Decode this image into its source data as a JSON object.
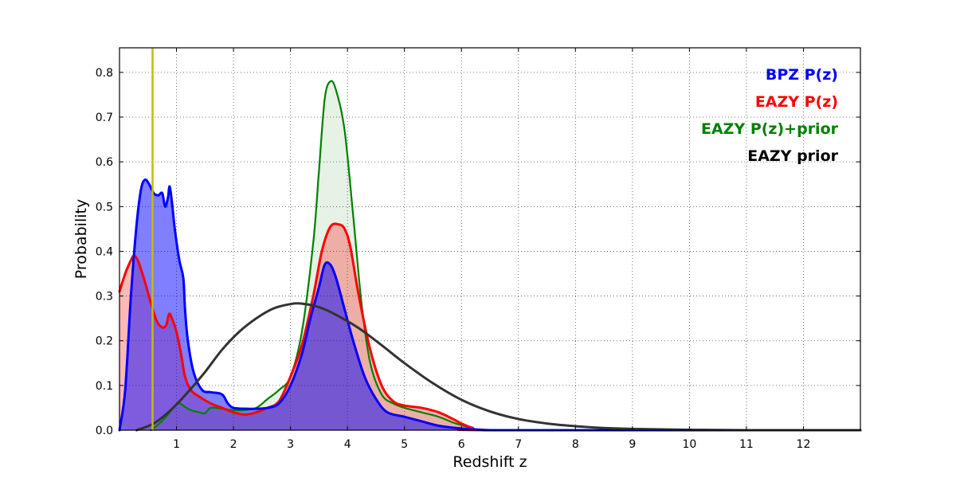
{
  "chart_data": {
    "type": "area",
    "xlabel": "Redshift z",
    "ylabel": "Probability",
    "xlim": [
      0,
      13
    ],
    "ylim": [
      0,
      0.855
    ],
    "grid": true,
    "legend_placement": "top-right",
    "x_ticks": [
      1,
      2,
      3,
      4,
      5,
      6,
      7,
      8,
      9,
      10,
      11,
      12
    ],
    "x_tick_labels": [
      "1",
      "2",
      "3",
      "4",
      "5",
      "6",
      "7",
      "8",
      "9",
      "10",
      "11",
      "12"
    ],
    "y_ticks": [
      0.0,
      0.1,
      0.2,
      0.3,
      0.4,
      0.5,
      0.6,
      0.7,
      0.8
    ],
    "y_tick_labels": [
      "0.0",
      "0.1",
      "0.2",
      "0.3",
      "0.4",
      "0.5",
      "0.6",
      "0.7",
      "0.8"
    ],
    "reference_line": {
      "x": 0.58,
      "color": "#bfbf00"
    },
    "series": [
      {
        "name": "BPZ P(z)",
        "color": "#0000ff",
        "fill": "#0000ff",
        "fill_opacity": 0.5,
        "line_width": 3,
        "x": [
          0,
          0.1,
          0.2,
          0.3,
          0.38,
          0.45,
          0.52,
          0.6,
          0.68,
          0.75,
          0.8,
          0.85,
          0.88,
          0.92,
          0.97,
          1.05,
          1.12,
          1.15,
          1.2,
          1.3,
          1.45,
          1.6,
          1.8,
          1.9,
          2.0,
          2.2,
          2.4,
          2.6,
          2.8,
          3.0,
          3.2,
          3.35,
          3.5,
          3.6,
          3.7,
          3.8,
          3.95,
          4.1,
          4.3,
          4.5,
          4.7,
          5.0,
          5.3,
          5.6,
          5.9,
          6.2,
          6.5,
          7.0,
          13.0
        ],
        "y": [
          0.0,
          0.09,
          0.3,
          0.46,
          0.54,
          0.56,
          0.55,
          0.53,
          0.525,
          0.53,
          0.5,
          0.52,
          0.545,
          0.51,
          0.45,
          0.38,
          0.34,
          0.27,
          0.2,
          0.13,
          0.09,
          0.085,
          0.08,
          0.06,
          0.05,
          0.048,
          0.048,
          0.05,
          0.06,
          0.1,
          0.17,
          0.25,
          0.32,
          0.37,
          0.37,
          0.34,
          0.27,
          0.2,
          0.12,
          0.07,
          0.04,
          0.03,
          0.02,
          0.01,
          0.005,
          0.002,
          0.0,
          0.0,
          0.0
        ]
      },
      {
        "name": "EAZY P(z)",
        "color": "#ff0000",
        "fill": "#ff0000",
        "fill_opacity": 0.28,
        "line_width": 3,
        "x": [
          0,
          0.1,
          0.2,
          0.25,
          0.3,
          0.35,
          0.45,
          0.55,
          0.65,
          0.75,
          0.82,
          0.87,
          0.92,
          1.0,
          1.08,
          1.15,
          1.25,
          1.4,
          1.6,
          1.8,
          2.0,
          2.2,
          2.4,
          2.6,
          2.8,
          3.0,
          3.2,
          3.4,
          3.55,
          3.7,
          3.85,
          3.95,
          4.05,
          4.2,
          4.4,
          4.6,
          4.8,
          5.0,
          5.3,
          5.6,
          5.85,
          6.0,
          6.2,
          6.5,
          13.0
        ],
        "y": [
          0.31,
          0.35,
          0.38,
          0.39,
          0.385,
          0.37,
          0.33,
          0.285,
          0.245,
          0.23,
          0.235,
          0.26,
          0.25,
          0.22,
          0.17,
          0.12,
          0.09,
          0.075,
          0.06,
          0.05,
          0.04,
          0.035,
          0.04,
          0.05,
          0.065,
          0.12,
          0.19,
          0.3,
          0.4,
          0.455,
          0.46,
          0.45,
          0.41,
          0.3,
          0.18,
          0.1,
          0.065,
          0.055,
          0.05,
          0.04,
          0.025,
          0.015,
          0.005,
          0.0,
          0.0
        ]
      },
      {
        "name": "EAZY P(z)+prior",
        "color": "#008000",
        "fill": "#008000",
        "fill_opacity": 0.1,
        "line_width": 2.2,
        "x": [
          0.55,
          0.7,
          0.85,
          0.95,
          1.05,
          1.15,
          1.25,
          1.4,
          1.5,
          1.6,
          1.8,
          2.0,
          2.2,
          2.4,
          2.6,
          2.8,
          3.0,
          3.2,
          3.4,
          3.5,
          3.6,
          3.7,
          3.8,
          3.95,
          4.1,
          4.25,
          4.4,
          4.6,
          4.8,
          5.0,
          5.3,
          5.6,
          5.9,
          6.2,
          6.5,
          13.0
        ],
        "y": [
          0.0,
          0.015,
          0.035,
          0.052,
          0.06,
          0.052,
          0.045,
          0.04,
          0.038,
          0.05,
          0.048,
          0.045,
          0.045,
          0.05,
          0.07,
          0.09,
          0.12,
          0.22,
          0.42,
          0.58,
          0.74,
          0.78,
          0.76,
          0.67,
          0.48,
          0.28,
          0.15,
          0.08,
          0.06,
          0.05,
          0.04,
          0.03,
          0.015,
          0.005,
          0.0,
          0.0
        ]
      },
      {
        "name": "EAZY prior",
        "color": "#333333",
        "fill": "none",
        "fill_opacity": 0,
        "line_width": 3,
        "x": [
          0.3,
          0.6,
          0.9,
          1.2,
          1.5,
          1.8,
          2.1,
          2.4,
          2.7,
          3.0,
          3.2,
          3.5,
          3.8,
          4.2,
          4.6,
          5.0,
          5.5,
          6.0,
          6.5,
          7.0,
          7.5,
          8.0,
          8.5,
          9.0,
          10.0,
          11.0,
          12.0,
          13.0
        ],
        "y": [
          0.0,
          0.015,
          0.045,
          0.085,
          0.13,
          0.18,
          0.22,
          0.25,
          0.272,
          0.282,
          0.283,
          0.275,
          0.258,
          0.228,
          0.19,
          0.15,
          0.105,
          0.068,
          0.042,
          0.025,
          0.015,
          0.009,
          0.005,
          0.003,
          0.001,
          0.0,
          0.0,
          0.0
        ]
      }
    ],
    "legend": [
      {
        "label": "BPZ P(z)",
        "color": "#0000ff"
      },
      {
        "label": "EAZY P(z)",
        "color": "#ff0000"
      },
      {
        "label": "EAZY P(z)+prior",
        "color": "#008000"
      },
      {
        "label": "EAZY prior",
        "color": "#000000"
      }
    ]
  }
}
